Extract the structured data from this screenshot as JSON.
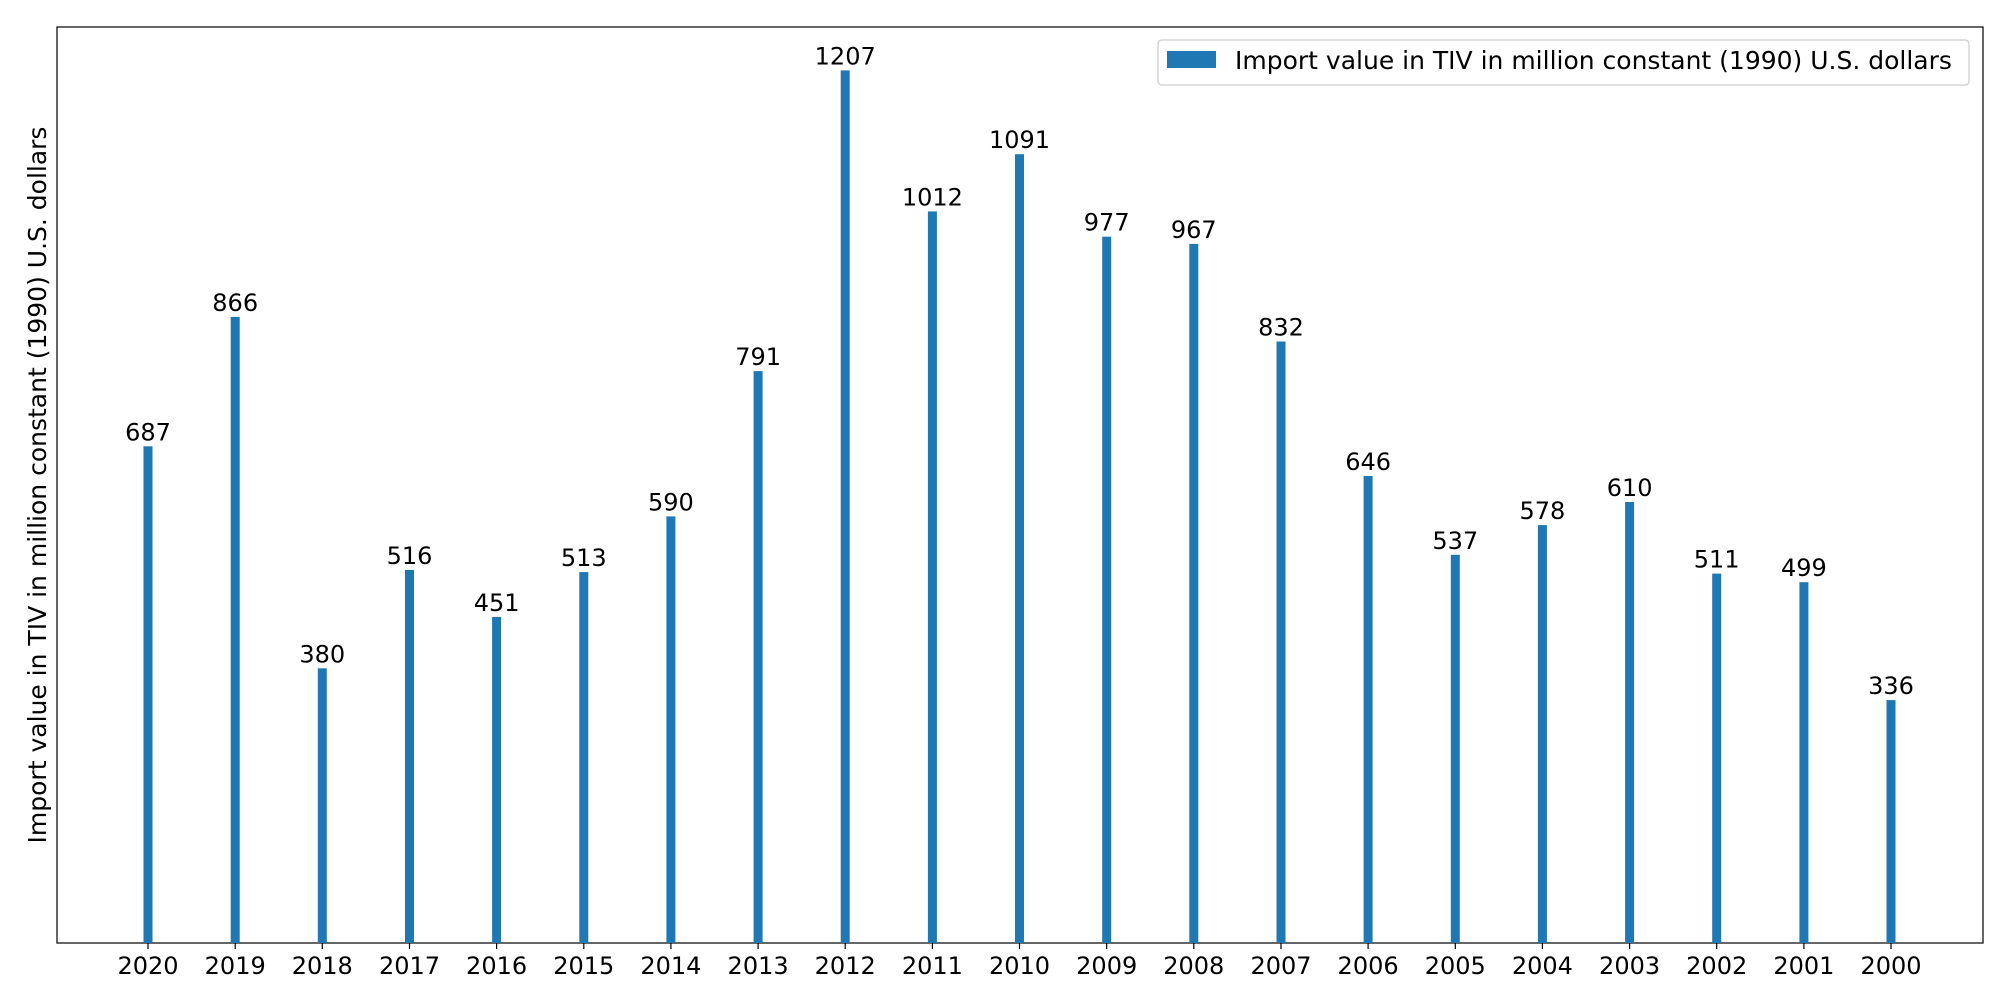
{
  "chart_data": {
    "type": "bar",
    "title": "",
    "xlabel": "",
    "ylabel": "Import value in TIV in million constant (1990) U.S. dollars",
    "categories": [
      "2020",
      "2019",
      "2018",
      "2017",
      "2016",
      "2015",
      "2014",
      "2013",
      "2012",
      "2011",
      "2010",
      "2009",
      "2008",
      "2007",
      "2006",
      "2005",
      "2004",
      "2003",
      "2002",
      "2001",
      "2000"
    ],
    "series": [
      {
        "name": "Import value in TIV in million constant (1990) U.S. dollars",
        "values": [
          687,
          866,
          380,
          516,
          451,
          513,
          590,
          791,
          1207,
          1012,
          1091,
          977,
          967,
          832,
          646,
          537,
          578,
          610,
          511,
          499,
          336
        ],
        "color": "#1f77b4"
      }
    ],
    "ylim": [
      0,
      1267
    ],
    "y_ticks_visible": false,
    "grid": false,
    "data_labels": true,
    "legend_position": "top-right"
  }
}
